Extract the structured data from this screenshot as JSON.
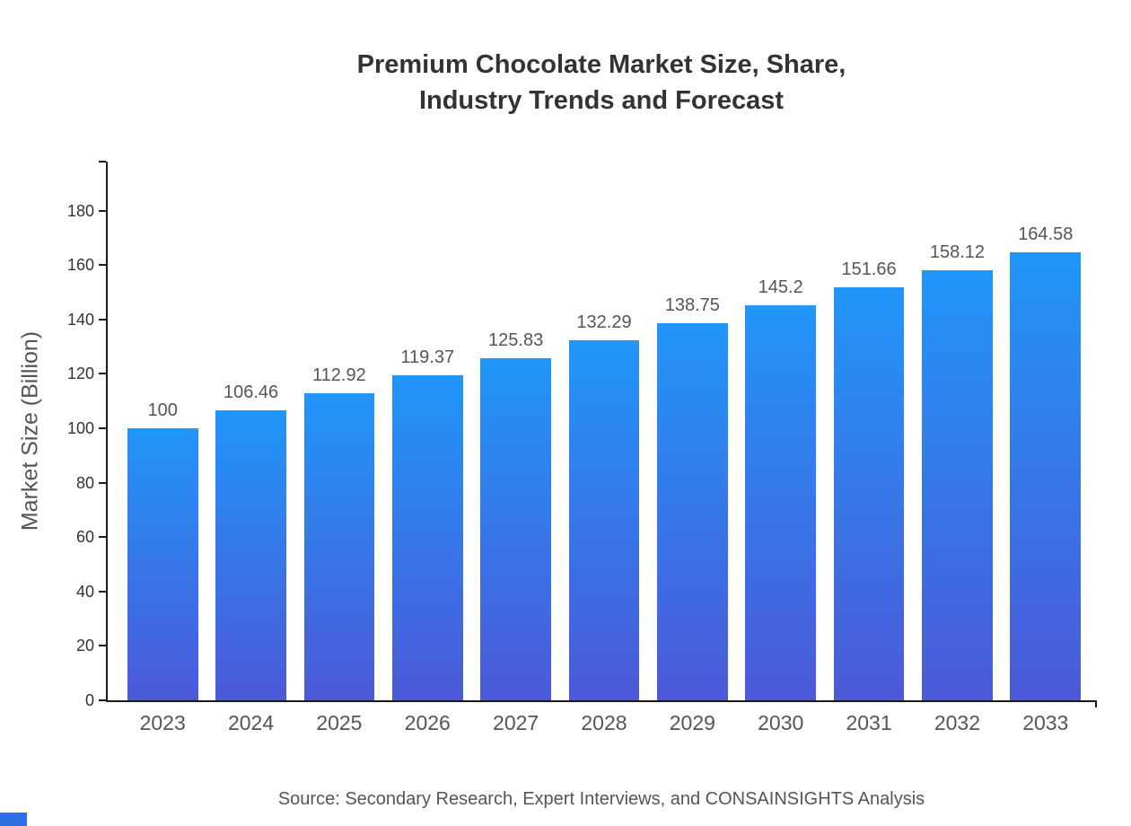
{
  "header": {
    "title_line1": "Premium Chocolate Market Size, Share,",
    "title_line2": "Industry Trends and Forecast"
  },
  "footer": {
    "source": "Source: Secondary Research, Expert Interviews, and CONSAINSIGHTS Analysis"
  },
  "colors": {
    "bar_gradient_top": "#2196fa",
    "bar_gradient_bottom": "#4c59d8",
    "logo_blue": "#2f6fe4"
  },
  "chart_data": {
    "type": "bar",
    "title": "Premium Chocolate Market Size, Share, Industry Trends and Forecast",
    "xlabel": "",
    "ylabel": "Market Size (Billion)",
    "categories": [
      "2023",
      "2024",
      "2025",
      "2026",
      "2027",
      "2028",
      "2029",
      "2030",
      "2031",
      "2032",
      "2033"
    ],
    "values": [
      100,
      106.46,
      112.92,
      119.37,
      125.83,
      132.29,
      138.75,
      145.2,
      151.66,
      158.12,
      164.58
    ],
    "yticks": [
      0,
      20,
      40,
      60,
      80,
      100,
      120,
      140,
      160,
      180
    ],
    "ylim": [
      0,
      198
    ],
    "grid": false,
    "legend": false
  }
}
